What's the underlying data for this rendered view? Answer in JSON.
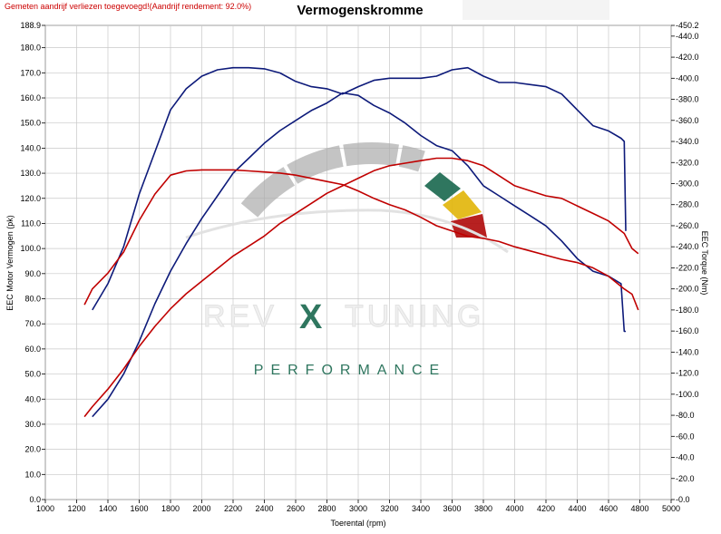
{
  "header": {
    "title": "Vermogenskromme",
    "note": "Gemeten aandrijf verliezen toegevoegd!(Aandrijf rendement: 92.0%)"
  },
  "watermark": {
    "brand_left": "REV",
    "brand_x": "X",
    "brand_right": "TUNING",
    "subtitle": "PERFORMANCE",
    "colors": {
      "grey": "#a9a9a9",
      "green": "#1e6b52",
      "yellow": "#e2b70e",
      "red": "#b10f0f"
    }
  },
  "chart_data": {
    "type": "line",
    "title": "Vermogenskromme",
    "xlabel": "Toerental (rpm)",
    "ylabel_left": "EEC Motor Vermogen (pk)",
    "ylabel_right": "EEC Torque (Nm)",
    "xlim": [
      1000,
      5000
    ],
    "ylim_left": [
      0,
      188.9
    ],
    "ylim_right": [
      0,
      450.2
    ],
    "x_ticks": [
      "1000",
      "1200",
      "1400",
      "1600",
      "1800",
      "2000",
      "2200",
      "2400",
      "2600",
      "2800",
      "3000",
      "3200",
      "3400",
      "3600",
      "3800",
      "4000",
      "4200",
      "4400",
      "4600",
      "4800",
      "5000"
    ],
    "y_left_ticks": [
      {
        "v": 188.9,
        "label": "188.9"
      },
      {
        "v": 180,
        "label": "180.0"
      },
      {
        "v": 170,
        "label": "170.0"
      },
      {
        "v": 160,
        "label": "160.0"
      },
      {
        "v": 150,
        "label": "150.0"
      },
      {
        "v": 140,
        "label": "140.0"
      },
      {
        "v": 130,
        "label": "130.0"
      },
      {
        "v": 120,
        "label": "120.0"
      },
      {
        "v": 110,
        "label": "110.0"
      },
      {
        "v": 100,
        "label": "100.0"
      },
      {
        "v": 90,
        "label": "90.0"
      },
      {
        "v": 80,
        "label": "80.0"
      },
      {
        "v": 70,
        "label": "70.0"
      },
      {
        "v": 60,
        "label": "60.0"
      },
      {
        "v": 50,
        "label": "50.0"
      },
      {
        "v": 40,
        "label": "40.0"
      },
      {
        "v": 30,
        "label": "30.0"
      },
      {
        "v": 20,
        "label": "20.0"
      },
      {
        "v": 10,
        "label": "10.0"
      },
      {
        "v": 0,
        "label": "0.0"
      }
    ],
    "y_right_ticks": [
      {
        "v": 450.2,
        "label": "450.2"
      },
      {
        "v": 440,
        "label": "440.0"
      },
      {
        "v": 420,
        "label": "420.0"
      },
      {
        "v": 400,
        "label": "400.0"
      },
      {
        "v": 380,
        "label": "380.0"
      },
      {
        "v": 360,
        "label": "360.0"
      },
      {
        "v": 340,
        "label": "340.0"
      },
      {
        "v": 320,
        "label": "320.0"
      },
      {
        "v": 300,
        "label": "300.0"
      },
      {
        "v": 280,
        "label": "280.0"
      },
      {
        "v": 260,
        "label": "260.0"
      },
      {
        "v": 240,
        "label": "240.0"
      },
      {
        "v": 220,
        "label": "220.0"
      },
      {
        "v": 200,
        "label": "200.0"
      },
      {
        "v": 180,
        "label": "180.0"
      },
      {
        "v": 160,
        "label": "160.0"
      },
      {
        "v": 140,
        "label": "140.0"
      },
      {
        "v": 120,
        "label": "120.0"
      },
      {
        "v": 100,
        "label": "100.0"
      },
      {
        "v": 80,
        "label": "80.0"
      },
      {
        "v": 60,
        "label": "60.0"
      },
      {
        "v": 40,
        "label": "40.0"
      },
      {
        "v": 20,
        "label": "20.0"
      },
      {
        "v": 0,
        "label": "0.0"
      }
    ],
    "grid": true,
    "series": [
      {
        "key": "tuned_torque",
        "axis": "right",
        "color": "#0d1a7a",
        "x": [
          1300,
          1400,
          1500,
          1600,
          1700,
          1800,
          1900,
          2000,
          2100,
          2200,
          2300,
          2400,
          2500,
          2600,
          2700,
          2800,
          2900,
          3000,
          3100,
          3200,
          3300,
          3400,
          3500,
          3600,
          3700,
          3800,
          3900,
          4000,
          4100,
          4200,
          4300,
          4400,
          4500,
          4600,
          4680,
          4700,
          4710
        ],
        "y": [
          180,
          205,
          240,
          290,
          330,
          370,
          390,
          402,
          408,
          410,
          410,
          409,
          405,
          397,
          392,
          390,
          385,
          392,
          398,
          400,
          400,
          400,
          402,
          408,
          410,
          402,
          396,
          396,
          394,
          392,
          385,
          370,
          355,
          350,
          343,
          340,
          255
        ]
      },
      {
        "key": "tuned_power",
        "axis": "left",
        "color": "#0d1a7a",
        "x": [
          1300,
          1400,
          1500,
          1600,
          1700,
          1800,
          1900,
          2000,
          2100,
          2200,
          2300,
          2400,
          2500,
          2600,
          2700,
          2800,
          2900,
          3000,
          3100,
          3200,
          3300,
          3400,
          3500,
          3600,
          3700,
          3800,
          3900,
          4000,
          4100,
          4200,
          4300,
          4400,
          4500,
          4600,
          4680,
          4700,
          4710
        ],
        "y": [
          33,
          40,
          50,
          63,
          78,
          91,
          102,
          112,
          121,
          130,
          136,
          142,
          147,
          151,
          155,
          158,
          162,
          161,
          157,
          154,
          150,
          145,
          141,
          139,
          133,
          125,
          121,
          117,
          113,
          109,
          103,
          96,
          91,
          89,
          86,
          67,
          67
        ]
      },
      {
        "key": "stock_torque",
        "axis": "right",
        "color": "#c00000",
        "x": [
          1250,
          1300,
          1400,
          1500,
          1600,
          1700,
          1800,
          1900,
          2000,
          2100,
          2200,
          2300,
          2400,
          2500,
          2600,
          2700,
          2800,
          2900,
          3000,
          3100,
          3200,
          3300,
          3400,
          3500,
          3600,
          3700,
          3800,
          3900,
          4000,
          4100,
          4200,
          4300,
          4400,
          4500,
          4600,
          4700,
          4750,
          4790
        ],
        "y": [
          185,
          200,
          215,
          235,
          265,
          290,
          308,
          312,
          313,
          313,
          313,
          312,
          311,
          310,
          308,
          305,
          302,
          299,
          293,
          286,
          280,
          275,
          268,
          260,
          255,
          250,
          248,
          245,
          240,
          236,
          232,
          228,
          225,
          220,
          212,
          200,
          195,
          180
        ]
      },
      {
        "key": "stock_power",
        "axis": "left",
        "color": "#c00000",
        "x": [
          1250,
          1300,
          1400,
          1500,
          1600,
          1700,
          1800,
          1900,
          2000,
          2100,
          2200,
          2300,
          2400,
          2500,
          2600,
          2700,
          2800,
          2900,
          3000,
          3100,
          3200,
          3300,
          3400,
          3500,
          3600,
          3700,
          3800,
          3900,
          4000,
          4100,
          4200,
          4300,
          4400,
          4500,
          4600,
          4700,
          4750,
          4790
        ],
        "y": [
          33,
          37,
          44,
          52,
          61,
          69,
          76,
          82,
          87,
          92,
          97,
          101,
          105,
          110,
          114,
          118,
          122,
          125,
          128,
          131,
          133,
          134,
          135,
          136,
          136,
          135,
          133,
          129,
          125,
          123,
          121,
          120,
          117,
          114,
          111,
          106,
          100,
          98
        ]
      }
    ]
  }
}
